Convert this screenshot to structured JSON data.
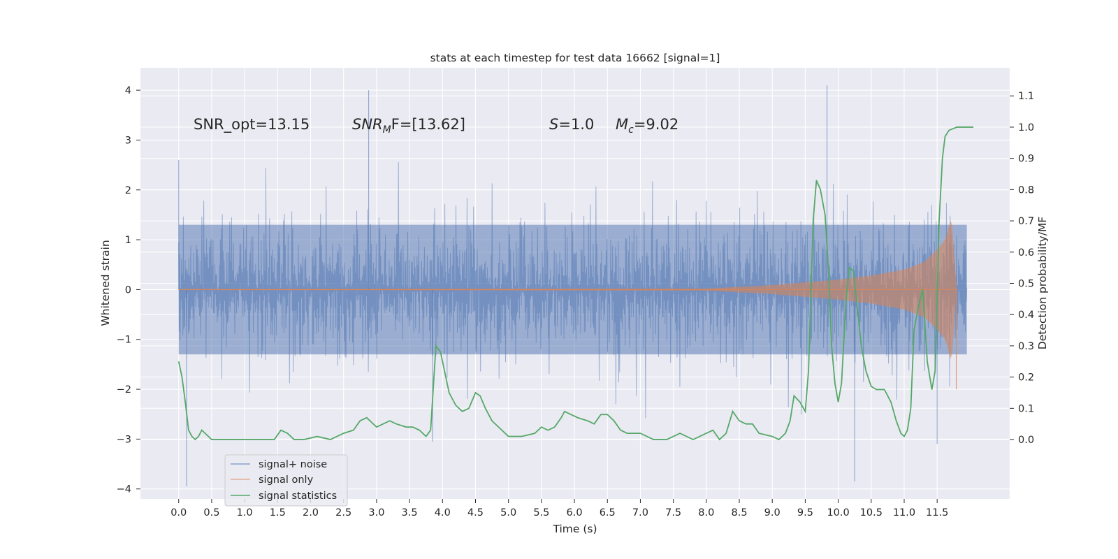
{
  "chart_data": {
    "type": "line",
    "title": "stats at each timestep for test data 16662 [signal=1]",
    "xlabel": "Time (s)",
    "ylabel_left": "Whitened strain",
    "ylabel_right": "Detection probability/MF",
    "xlim": [
      -0.58,
      12.6
    ],
    "ylim_left": [
      -4.2,
      4.45
    ],
    "ylim_right": [
      -0.19,
      1.19
    ],
    "x_ticks": [
      "0.0",
      "0.5",
      "1.0",
      "1.5",
      "2.0",
      "2.5",
      "3.0",
      "3.5",
      "4.0",
      "4.5",
      "5.0",
      "5.5",
      "6.0",
      "6.5",
      "7.0",
      "7.5",
      "8.0",
      "8.5",
      "9.0",
      "9.5",
      "10.0",
      "10.5",
      "11.0",
      "11.5"
    ],
    "y_ticks_left": [
      "−4",
      "−3",
      "−2",
      "−1",
      "0",
      "1",
      "2",
      "3",
      "4"
    ],
    "y_ticks_right": [
      "0.0",
      "0.1",
      "0.2",
      "0.3",
      "0.4",
      "0.5",
      "0.6",
      "0.7",
      "0.8",
      "0.9",
      "1.0",
      "1.1"
    ],
    "grid": true,
    "legend_position": "lower-left",
    "colors": {
      "background": "#eaeaf2",
      "grid": "#ffffff",
      "noise": "#4c72b0",
      "signal": "#dd8452",
      "stats": "#55a868"
    },
    "annotations": {
      "snr_opt": "SNR_opt=13.15",
      "snr_mf_base": "SNR",
      "snr_mf_sub": "M",
      "snr_mf_rest": "F=[13.62]",
      "s_symbol": "S",
      "s_value": "=1.0",
      "mc_base": "M",
      "mc_sub": "c",
      "mc_value": "=9.02"
    },
    "series": [
      {
        "name": "signal+ noise",
        "axis": "left",
        "t_range": [
          0.0,
          11.95
        ],
        "envelope_2sigma": 1.3,
        "notable_spikes": [
          [
            0.0,
            2.6
          ],
          [
            0.12,
            -3.95
          ],
          [
            2.88,
            4.0
          ],
          [
            3.85,
            -3.05
          ],
          [
            9.83,
            4.1
          ],
          [
            10.25,
            -3.85
          ],
          [
            11.5,
            -3.1
          ]
        ]
      },
      {
        "name": "signal only",
        "axis": "left",
        "t_range": [
          0.0,
          11.8
        ],
        "amplitude_points": [
          [
            0.0,
            0.01
          ],
          [
            8.0,
            0.02
          ],
          [
            9.0,
            0.09
          ],
          [
            10.0,
            0.2
          ],
          [
            10.5,
            0.28
          ],
          [
            11.0,
            0.4
          ],
          [
            11.3,
            0.55
          ],
          [
            11.5,
            0.8
          ],
          [
            11.62,
            1.0
          ],
          [
            11.72,
            1.45
          ],
          [
            11.78,
            0.3
          ],
          [
            11.8,
            0.02
          ]
        ]
      },
      {
        "name": "signal statistics",
        "axis": "right",
        "points": [
          [
            0.0,
            0.25
          ],
          [
            0.05,
            0.2
          ],
          [
            0.1,
            0.12
          ],
          [
            0.15,
            0.03
          ],
          [
            0.2,
            0.01
          ],
          [
            0.25,
            0.0
          ],
          [
            0.3,
            0.01
          ],
          [
            0.35,
            0.03
          ],
          [
            0.4,
            0.02
          ],
          [
            0.5,
            0.0
          ],
          [
            0.7,
            0.0
          ],
          [
            1.0,
            0.0
          ],
          [
            1.2,
            0.0
          ],
          [
            1.3,
            0.0
          ],
          [
            1.45,
            0.0
          ],
          [
            1.55,
            0.03
          ],
          [
            1.65,
            0.02
          ],
          [
            1.75,
            0.0
          ],
          [
            1.9,
            0.0
          ],
          [
            2.1,
            0.01
          ],
          [
            2.3,
            0.0
          ],
          [
            2.5,
            0.02
          ],
          [
            2.65,
            0.03
          ],
          [
            2.75,
            0.06
          ],
          [
            2.85,
            0.07
          ],
          [
            3.0,
            0.04
          ],
          [
            3.1,
            0.05
          ],
          [
            3.2,
            0.06
          ],
          [
            3.3,
            0.05
          ],
          [
            3.45,
            0.04
          ],
          [
            3.55,
            0.04
          ],
          [
            3.65,
            0.03
          ],
          [
            3.75,
            0.01
          ],
          [
            3.82,
            0.03
          ],
          [
            3.9,
            0.3
          ],
          [
            3.97,
            0.28
          ],
          [
            4.05,
            0.2
          ],
          [
            4.1,
            0.15
          ],
          [
            4.2,
            0.11
          ],
          [
            4.3,
            0.09
          ],
          [
            4.4,
            0.1
          ],
          [
            4.5,
            0.15
          ],
          [
            4.57,
            0.14
          ],
          [
            4.65,
            0.1
          ],
          [
            4.75,
            0.06
          ],
          [
            4.9,
            0.03
          ],
          [
            5.0,
            0.01
          ],
          [
            5.2,
            0.01
          ],
          [
            5.4,
            0.02
          ],
          [
            5.5,
            0.04
          ],
          [
            5.6,
            0.03
          ],
          [
            5.7,
            0.04
          ],
          [
            5.8,
            0.07
          ],
          [
            5.85,
            0.09
          ],
          [
            5.95,
            0.08
          ],
          [
            6.05,
            0.07
          ],
          [
            6.2,
            0.06
          ],
          [
            6.3,
            0.05
          ],
          [
            6.4,
            0.08
          ],
          [
            6.5,
            0.08
          ],
          [
            6.6,
            0.06
          ],
          [
            6.7,
            0.03
          ],
          [
            6.8,
            0.02
          ],
          [
            7.0,
            0.02
          ],
          [
            7.2,
            0.0
          ],
          [
            7.4,
            0.0
          ],
          [
            7.6,
            0.02
          ],
          [
            7.8,
            0.0
          ],
          [
            8.0,
            0.02
          ],
          [
            8.1,
            0.03
          ],
          [
            8.2,
            0.0
          ],
          [
            8.3,
            0.02
          ],
          [
            8.4,
            0.09
          ],
          [
            8.5,
            0.06
          ],
          [
            8.6,
            0.05
          ],
          [
            8.7,
            0.05
          ],
          [
            8.8,
            0.02
          ],
          [
            9.0,
            0.01
          ],
          [
            9.1,
            0.0
          ],
          [
            9.2,
            0.02
          ],
          [
            9.27,
            0.06
          ],
          [
            9.33,
            0.14
          ],
          [
            9.42,
            0.12
          ],
          [
            9.5,
            0.09
          ],
          [
            9.55,
            0.22
          ],
          [
            9.62,
            0.7
          ],
          [
            9.67,
            0.83
          ],
          [
            9.73,
            0.8
          ],
          [
            9.8,
            0.72
          ],
          [
            9.85,
            0.55
          ],
          [
            9.9,
            0.3
          ],
          [
            9.95,
            0.18
          ],
          [
            10.0,
            0.12
          ],
          [
            10.05,
            0.18
          ],
          [
            10.12,
            0.45
          ],
          [
            10.17,
            0.55
          ],
          [
            10.23,
            0.54
          ],
          [
            10.3,
            0.4
          ],
          [
            10.35,
            0.3
          ],
          [
            10.42,
            0.22
          ],
          [
            10.5,
            0.17
          ],
          [
            10.58,
            0.16
          ],
          [
            10.7,
            0.16
          ],
          [
            10.8,
            0.12
          ],
          [
            10.88,
            0.06
          ],
          [
            10.95,
            0.02
          ],
          [
            11.0,
            0.01
          ],
          [
            11.05,
            0.03
          ],
          [
            11.1,
            0.1
          ],
          [
            11.15,
            0.35
          ],
          [
            11.22,
            0.43
          ],
          [
            11.28,
            0.48
          ],
          [
            11.35,
            0.25
          ],
          [
            11.42,
            0.16
          ],
          [
            11.47,
            0.22
          ],
          [
            11.53,
            0.7
          ],
          [
            11.58,
            0.9
          ],
          [
            11.62,
            0.97
          ],
          [
            11.68,
            0.99
          ],
          [
            11.8,
            1.0
          ],
          [
            11.9,
            1.0
          ],
          [
            12.05,
            1.0
          ]
        ]
      }
    ]
  }
}
